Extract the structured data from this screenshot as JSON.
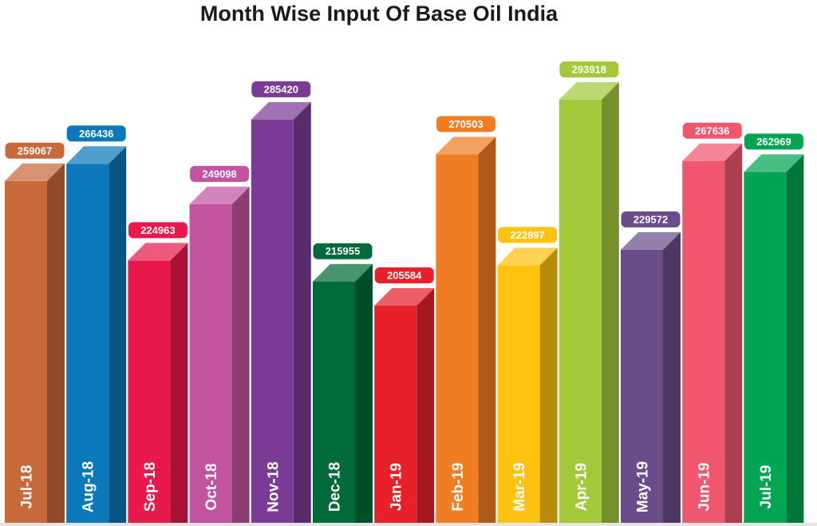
{
  "chart_data": {
    "type": "bar",
    "title": "Month Wise Input Of Base Oil India",
    "xlabel": "",
    "ylabel": "",
    "ylim": [
      0,
      300000
    ],
    "grid": false,
    "categories": [
      "Jul-18",
      "Aug-18",
      "Sep-18",
      "Oct-18",
      "Nov-18",
      "Dec-18",
      "Jan-19",
      "Feb-19",
      "Mar-19",
      "Apr-19",
      "May-19",
      "Jun-19",
      "Jul-19"
    ],
    "values": [
      259067,
      266436,
      224963,
      249098,
      285420,
      215955,
      205584,
      270503,
      222897,
      293918,
      229572,
      267636,
      262969
    ],
    "value_labels": [
      "259067",
      "266436",
      "224963",
      "249098",
      "285420",
      "215955",
      "205584",
      "270503",
      "222897",
      "293918",
      "229572",
      "267636",
      "262969"
    ],
    "colors": [
      "#C8693A",
      "#0A78B9",
      "#E8194B",
      "#C153A0",
      "#7B3A96",
      "#006B3A",
      "#E8202A",
      "#F07D22",
      "#FFC20E",
      "#A3C93A",
      "#6B4C8A",
      "#F0566E",
      "#00A551"
    ]
  }
}
